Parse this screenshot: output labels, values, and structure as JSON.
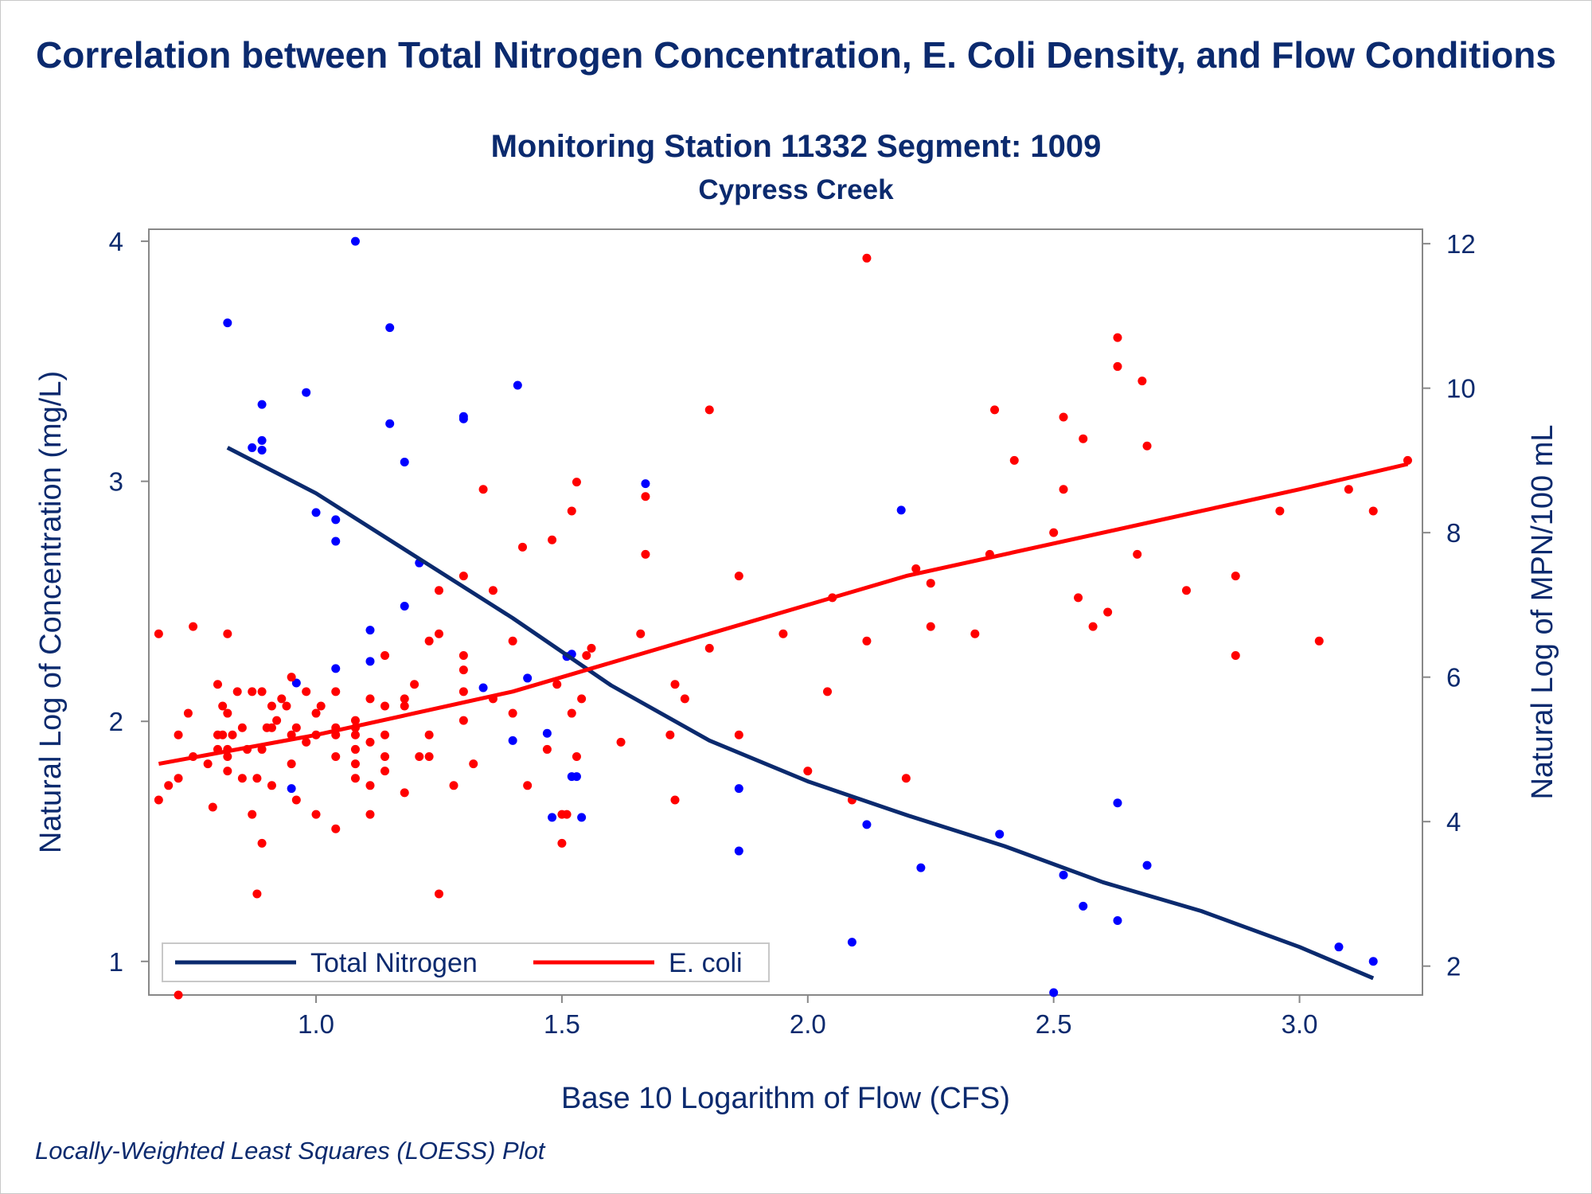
{
  "title": "Correlation between Total Nitrogen Concentration, E. Coli Density, and Flow Conditions",
  "subtitle": "Monitoring Station 11332 Segment: 1009",
  "subtitle2": "Cypress Creek",
  "footnote": "Locally-Weighted Least Squares (LOESS) Plot",
  "colors": {
    "text": "#0b2a6e",
    "nitrogen": "#0b2a6e",
    "nitrogen_points": "#0000ff",
    "ecoli": "#ff0000",
    "frame": "#888888"
  },
  "chart_data": {
    "type": "scatter",
    "xlabel": "Base 10 Logarithm of Flow (CFS)",
    "ylabel": "Natural Log of Concentration (mg/L)",
    "y2label": "Natural Log of MPN/100 mL",
    "xlim": [
      0.66,
      3.25
    ],
    "ylim": [
      0.86,
      4.05
    ],
    "y2lim": [
      1.6,
      12.2
    ],
    "xticks": [
      "1.0",
      "1.5",
      "2.0",
      "2.5",
      "3.0"
    ],
    "yticks": [
      "1",
      "2",
      "3",
      "4"
    ],
    "y2ticks": [
      "2",
      "4",
      "6",
      "8",
      "10",
      "12"
    ],
    "legend_position": "bottom-left inside",
    "series": [
      {
        "name": "Total Nitrogen",
        "axis": "left",
        "color": "#0000ff",
        "line_color": "#0b2a6e",
        "points": [
          [
            0.82,
            3.66
          ],
          [
            0.87,
            3.14
          ],
          [
            0.89,
            3.32
          ],
          [
            0.89,
            3.17
          ],
          [
            0.89,
            3.13
          ],
          [
            0.98,
            3.37
          ],
          [
            1.0,
            2.87
          ],
          [
            1.04,
            2.84
          ],
          [
            1.04,
            2.75
          ],
          [
            1.08,
            4.0
          ],
          [
            1.15,
            3.64
          ],
          [
            1.15,
            3.24
          ],
          [
            1.18,
            3.08
          ],
          [
            1.21,
            2.66
          ],
          [
            1.3,
            3.27
          ],
          [
            1.3,
            3.26
          ],
          [
            1.41,
            3.4
          ],
          [
            1.67,
            2.99
          ],
          [
            2.19,
            2.88
          ],
          [
            1.11,
            2.38
          ],
          [
            1.18,
            2.48
          ],
          [
            1.04,
            2.22
          ],
          [
            1.11,
            2.25
          ],
          [
            0.96,
            2.16
          ],
          [
            1.34,
            2.14
          ],
          [
            1.43,
            2.18
          ],
          [
            1.51,
            2.27
          ],
          [
            1.52,
            2.28
          ],
          [
            1.4,
            1.92
          ],
          [
            1.47,
            1.95
          ],
          [
            0.95,
            1.72
          ],
          [
            1.52,
            1.77
          ],
          [
            1.53,
            1.77
          ],
          [
            1.48,
            1.6
          ],
          [
            1.54,
            1.6
          ],
          [
            1.86,
            1.72
          ],
          [
            1.86,
            1.46
          ],
          [
            2.12,
            1.57
          ],
          [
            2.23,
            1.39
          ],
          [
            2.39,
            1.53
          ],
          [
            2.52,
            1.36
          ],
          [
            2.56,
            1.23
          ],
          [
            2.63,
            1.66
          ],
          [
            2.63,
            1.17
          ],
          [
            2.69,
            1.4
          ],
          [
            2.09,
            1.08
          ],
          [
            2.5,
            0.87
          ],
          [
            3.08,
            1.06
          ],
          [
            3.15,
            1.0
          ]
        ],
        "loess": [
          [
            0.82,
            3.14
          ],
          [
            1.0,
            2.95
          ],
          [
            1.2,
            2.69
          ],
          [
            1.4,
            2.43
          ],
          [
            1.6,
            2.15
          ],
          [
            1.8,
            1.92
          ],
          [
            2.0,
            1.75
          ],
          [
            2.2,
            1.61
          ],
          [
            2.4,
            1.48
          ],
          [
            2.6,
            1.33
          ],
          [
            2.8,
            1.21
          ],
          [
            3.0,
            1.06
          ],
          [
            3.15,
            0.93
          ]
        ]
      },
      {
        "name": "E. coli",
        "axis": "right",
        "color": "#ff0000",
        "line_color": "#ff0000",
        "points": [
          [
            0.68,
            6.6
          ],
          [
            0.68,
            4.3
          ],
          [
            0.7,
            4.5
          ],
          [
            0.72,
            1.6
          ],
          [
            0.72,
            5.2
          ],
          [
            0.72,
            4.6
          ],
          [
            0.74,
            5.5
          ],
          [
            0.75,
            6.7
          ],
          [
            0.75,
            4.9
          ],
          [
            0.78,
            4.8
          ],
          [
            0.79,
            4.2
          ],
          [
            0.8,
            5.2
          ],
          [
            0.8,
            5.9
          ],
          [
            0.8,
            5.0
          ],
          [
            0.81,
            5.2
          ],
          [
            0.81,
            5.6
          ],
          [
            0.82,
            5.0
          ],
          [
            0.83,
            5.2
          ],
          [
            0.82,
            6.6
          ],
          [
            0.82,
            4.9
          ],
          [
            0.82,
            4.7
          ],
          [
            0.82,
            5.5
          ],
          [
            0.84,
            5.8
          ],
          [
            0.85,
            4.6
          ],
          [
            0.85,
            5.3
          ],
          [
            0.86,
            5.0
          ],
          [
            0.87,
            5.8
          ],
          [
            0.87,
            4.1
          ],
          [
            0.88,
            4.6
          ],
          [
            0.88,
            3.0
          ],
          [
            0.89,
            5.0
          ],
          [
            0.89,
            3.7
          ],
          [
            0.89,
            5.8
          ],
          [
            0.9,
            5.3
          ],
          [
            0.91,
            5.3
          ],
          [
            0.91,
            5.6
          ],
          [
            0.91,
            4.5
          ],
          [
            0.92,
            5.4
          ],
          [
            0.93,
            5.7
          ],
          [
            0.94,
            5.6
          ],
          [
            0.95,
            5.2
          ],
          [
            0.95,
            6.0
          ],
          [
            0.95,
            4.8
          ],
          [
            0.96,
            5.3
          ],
          [
            0.96,
            4.3
          ],
          [
            0.98,
            5.1
          ],
          [
            0.98,
            5.8
          ],
          [
            1.0,
            5.5
          ],
          [
            1.0,
            5.2
          ],
          [
            1.0,
            4.1
          ],
          [
            1.01,
            5.6
          ],
          [
            1.04,
            5.3
          ],
          [
            1.04,
            5.2
          ],
          [
            1.04,
            4.9
          ],
          [
            1.04,
            3.9
          ],
          [
            1.04,
            5.8
          ],
          [
            1.08,
            5.3
          ],
          [
            1.08,
            5.2
          ],
          [
            1.08,
            5.0
          ],
          [
            1.08,
            4.8
          ],
          [
            1.08,
            4.6
          ],
          [
            1.08,
            5.4
          ],
          [
            1.11,
            5.7
          ],
          [
            1.11,
            4.5
          ],
          [
            1.11,
            4.1
          ],
          [
            1.11,
            5.1
          ],
          [
            1.14,
            5.6
          ],
          [
            1.14,
            4.9
          ],
          [
            1.14,
            4.7
          ],
          [
            1.14,
            5.2
          ],
          [
            1.14,
            6.3
          ],
          [
            1.18,
            5.7
          ],
          [
            1.18,
            5.6
          ],
          [
            1.18,
            4.4
          ],
          [
            1.2,
            5.9
          ],
          [
            1.21,
            4.9
          ],
          [
            1.23,
            4.9
          ],
          [
            1.23,
            5.2
          ],
          [
            1.23,
            6.5
          ],
          [
            1.25,
            6.6
          ],
          [
            1.25,
            7.2
          ],
          [
            1.25,
            3.0
          ],
          [
            1.28,
            4.5
          ],
          [
            1.3,
            7.4
          ],
          [
            1.3,
            6.3
          ],
          [
            1.3,
            6.1
          ],
          [
            1.3,
            5.8
          ],
          [
            1.3,
            5.4
          ],
          [
            1.32,
            4.8
          ],
          [
            1.34,
            8.6
          ],
          [
            1.36,
            5.7
          ],
          [
            1.36,
            7.2
          ],
          [
            1.4,
            6.5
          ],
          [
            1.4,
            5.5
          ],
          [
            1.42,
            7.8
          ],
          [
            1.43,
            4.5
          ],
          [
            1.47,
            5.0
          ],
          [
            1.48,
            7.9
          ],
          [
            1.49,
            5.9
          ],
          [
            1.5,
            3.7
          ],
          [
            1.5,
            4.1
          ],
          [
            1.51,
            4.1
          ],
          [
            1.52,
            5.5
          ],
          [
            1.52,
            8.3
          ],
          [
            1.53,
            8.7
          ],
          [
            1.53,
            4.9
          ],
          [
            1.54,
            5.7
          ],
          [
            1.55,
            6.3
          ],
          [
            1.56,
            6.4
          ],
          [
            1.62,
            5.1
          ],
          [
            1.66,
            6.6
          ],
          [
            1.67,
            8.5
          ],
          [
            1.67,
            7.7
          ],
          [
            1.72,
            5.2
          ],
          [
            1.73,
            4.3
          ],
          [
            1.73,
            5.9
          ],
          [
            1.75,
            5.7
          ],
          [
            1.8,
            9.7
          ],
          [
            1.8,
            6.4
          ],
          [
            1.86,
            7.4
          ],
          [
            1.86,
            5.2
          ],
          [
            1.95,
            6.6
          ],
          [
            2.0,
            4.7
          ],
          [
            2.04,
            5.8
          ],
          [
            2.05,
            7.1
          ],
          [
            2.09,
            4.3
          ],
          [
            2.12,
            11.8
          ],
          [
            2.12,
            6.5
          ],
          [
            2.2,
            4.6
          ],
          [
            2.22,
            7.5
          ],
          [
            2.25,
            7.3
          ],
          [
            2.25,
            6.7
          ],
          [
            2.34,
            6.6
          ],
          [
            2.37,
            7.7
          ],
          [
            2.38,
            9.7
          ],
          [
            2.42,
            9.0
          ],
          [
            2.5,
            8.0
          ],
          [
            2.52,
            8.6
          ],
          [
            2.52,
            9.6
          ],
          [
            2.55,
            7.1
          ],
          [
            2.56,
            9.3
          ],
          [
            2.58,
            6.7
          ],
          [
            2.61,
            6.9
          ],
          [
            2.63,
            10.3
          ],
          [
            2.63,
            10.7
          ],
          [
            2.67,
            7.7
          ],
          [
            2.68,
            10.1
          ],
          [
            2.69,
            9.2
          ],
          [
            2.77,
            7.2
          ],
          [
            2.87,
            7.4
          ],
          [
            2.87,
            6.3
          ],
          [
            2.96,
            8.3
          ],
          [
            3.04,
            6.5
          ],
          [
            3.1,
            8.6
          ],
          [
            3.15,
            8.3
          ],
          [
            3.22,
            9.0
          ]
        ],
        "loess": [
          [
            0.68,
            4.8
          ],
          [
            1.0,
            5.2
          ],
          [
            1.2,
            5.5
          ],
          [
            1.4,
            5.8
          ],
          [
            1.6,
            6.2
          ],
          [
            1.8,
            6.6
          ],
          [
            2.0,
            7.0
          ],
          [
            2.2,
            7.4
          ],
          [
            2.4,
            7.7
          ],
          [
            2.6,
            8.0
          ],
          [
            2.8,
            8.3
          ],
          [
            3.0,
            8.6
          ],
          [
            3.22,
            8.95
          ]
        ]
      }
    ]
  }
}
